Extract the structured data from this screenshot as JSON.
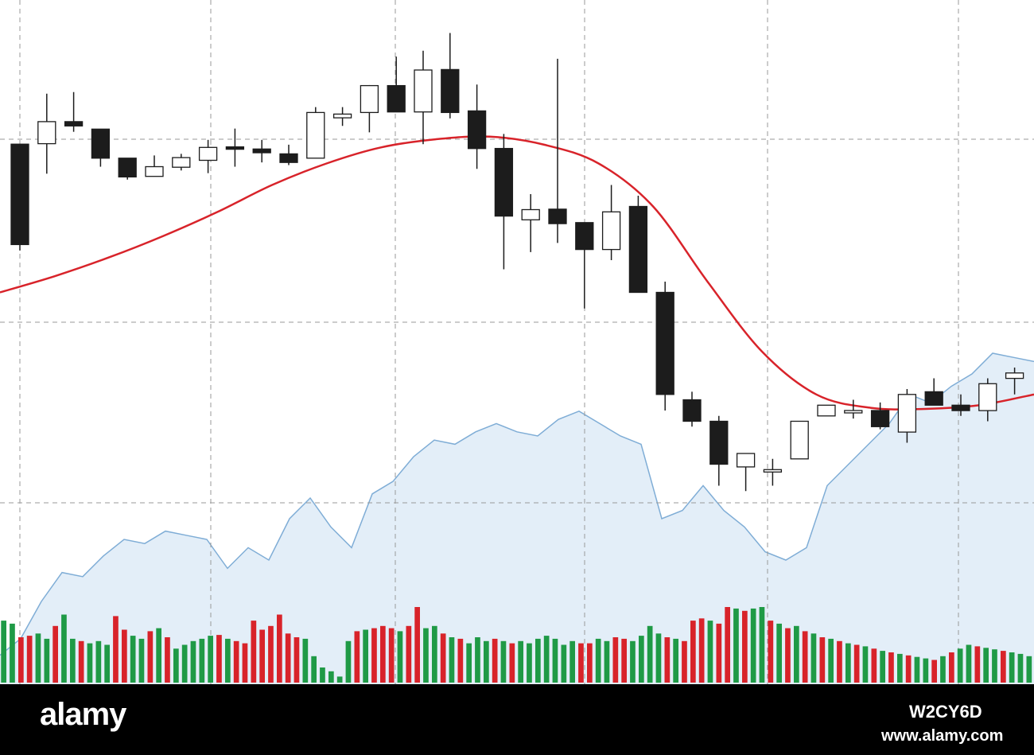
{
  "chart_data": {
    "type": "candlestick",
    "title": "",
    "xlabel": "",
    "ylabel": "",
    "grid": true,
    "ylim": [
      0,
      100
    ],
    "colors": {
      "bull_candle": "#ffffff",
      "bear_candle": "#1c1c1c",
      "candle_outline": "#1c1c1c",
      "moving_average": "#d8232a",
      "area_fill": "#e3eef8",
      "area_line": "#7fadd6",
      "volume_up": "#1f9a46",
      "volume_down": "#d8232a",
      "grid": "#9a9a9a"
    },
    "candles": [
      {
        "o": 77.6,
        "h": 77.6,
        "l": 57.8,
        "c": 58.9
      },
      {
        "o": 77.7,
        "h": 87.0,
        "l": 72.1,
        "c": 81.8
      },
      {
        "o": 81.8,
        "h": 87.3,
        "l": 79.9,
        "c": 81.0
      },
      {
        "o": 80.4,
        "h": 80.4,
        "l": 73.4,
        "c": 75.0
      },
      {
        "o": 75.0,
        "h": 75.0,
        "l": 71.0,
        "c": 71.5
      },
      {
        "o": 71.6,
        "h": 75.5,
        "l": 71.6,
        "c": 73.4
      },
      {
        "o": 73.3,
        "h": 75.8,
        "l": 72.7,
        "c": 75.1
      },
      {
        "o": 74.6,
        "h": 78.4,
        "l": 72.2,
        "c": 77.0
      },
      {
        "o": 77.1,
        "h": 80.5,
        "l": 73.4,
        "c": 77.0
      },
      {
        "o": 76.7,
        "h": 78.4,
        "l": 74.2,
        "c": 76.0
      },
      {
        "o": 75.8,
        "h": 77.5,
        "l": 73.7,
        "c": 74.2
      },
      {
        "o": 75.0,
        "h": 84.5,
        "l": 75.0,
        "c": 83.5
      },
      {
        "o": 82.5,
        "h": 84.5,
        "l": 81.0,
        "c": 83.2
      },
      {
        "o": 83.5,
        "h": 88.6,
        "l": 79.8,
        "c": 88.5
      },
      {
        "o": 88.5,
        "h": 93.9,
        "l": 84.6,
        "c": 83.6
      },
      {
        "o": 83.6,
        "h": 95.0,
        "l": 77.6,
        "c": 91.4
      },
      {
        "o": 91.5,
        "h": 98.3,
        "l": 82.4,
        "c": 83.5
      },
      {
        "o": 83.8,
        "h": 88.7,
        "l": 73.0,
        "c": 76.8
      },
      {
        "o": 76.8,
        "h": 79.5,
        "l": 54.3,
        "c": 64.2
      },
      {
        "o": 63.5,
        "h": 68.3,
        "l": 57.5,
        "c": 65.4
      },
      {
        "o": 65.5,
        "h": 93.5,
        "l": 59.2,
        "c": 62.8
      },
      {
        "o": 63.0,
        "h": 63.0,
        "l": 47.0,
        "c": 58.0
      },
      {
        "o": 58.0,
        "h": 70.0,
        "l": 56.0,
        "c": 65.0
      },
      {
        "o": 66.0,
        "h": 68.0,
        "l": 50.0,
        "c": 50.0
      },
      {
        "o": 50.0,
        "h": 52.0,
        "l": 28.0,
        "c": 31.0
      },
      {
        "o": 30.0,
        "h": 31.5,
        "l": 25.0,
        "c": 26.0
      },
      {
        "o": 26.0,
        "h": 27.0,
        "l": 14.0,
        "c": 18.0
      },
      {
        "o": 17.5,
        "h": 20.0,
        "l": 13.0,
        "c": 20.0
      },
      {
        "o": 17.0,
        "h": 19.0,
        "l": 14.0,
        "c": 17.0
      },
      {
        "o": 19.0,
        "h": 26.0,
        "l": 19.0,
        "c": 26.0
      },
      {
        "o": 27.0,
        "h": 28.0,
        "l": 27.0,
        "c": 29.0
      },
      {
        "o": 28.0,
        "h": 30.0,
        "l": 26.5,
        "c": 28.0
      },
      {
        "o": 28.0,
        "h": 29.5,
        "l": 24.5,
        "c": 25.0
      },
      {
        "o": 24.0,
        "h": 32.0,
        "l": 22.0,
        "c": 31.0
      },
      {
        "o": 31.5,
        "h": 34.0,
        "l": 29.0,
        "c": 29.0
      },
      {
        "o": 29.0,
        "h": 31.0,
        "l": 27.0,
        "c": 28.0
      },
      {
        "o": 28.0,
        "h": 34.0,
        "l": 26.0,
        "c": 33.0
      },
      {
        "o": 34.0,
        "h": 36.0,
        "l": 31.0,
        "c": 35.0
      }
    ],
    "moving_average": [
      50,
      53,
      56.5,
      60.5,
      65,
      70,
      74,
      77,
      78.5,
      79,
      77.5,
      74,
      66,
      52,
      39,
      31,
      28.5,
      28.3,
      29,
      31
    ],
    "area_series": [
      7,
      11,
      20,
      27,
      26,
      31,
      35,
      34,
      37,
      36,
      35,
      28,
      33,
      30,
      40,
      45,
      38,
      33,
      46,
      49,
      55,
      59,
      58,
      61,
      63,
      61,
      60,
      64,
      66,
      63,
      60,
      58,
      40,
      42,
      48,
      42,
      38,
      32,
      30,
      33,
      48,
      53,
      58,
      63,
      70,
      68,
      72,
      75,
      80,
      79,
      78
    ],
    "volume": [
      {
        "v": 82,
        "up": true
      },
      {
        "v": 78,
        "up": true
      },
      {
        "v": 60,
        "up": false
      },
      {
        "v": 62,
        "up": false
      },
      {
        "v": 65,
        "up": true
      },
      {
        "v": 58,
        "up": true
      },
      {
        "v": 75,
        "up": false
      },
      {
        "v": 90,
        "up": true
      },
      {
        "v": 58,
        "up": true
      },
      {
        "v": 55,
        "up": false
      },
      {
        "v": 52,
        "up": true
      },
      {
        "v": 55,
        "up": true
      },
      {
        "v": 50,
        "up": true
      },
      {
        "v": 88,
        "up": false
      },
      {
        "v": 70,
        "up": false
      },
      {
        "v": 62,
        "up": true
      },
      {
        "v": 58,
        "up": true
      },
      {
        "v": 68,
        "up": false
      },
      {
        "v": 72,
        "up": true
      },
      {
        "v": 60,
        "up": false
      },
      {
        "v": 45,
        "up": true
      },
      {
        "v": 50,
        "up": true
      },
      {
        "v": 55,
        "up": true
      },
      {
        "v": 58,
        "up": true
      },
      {
        "v": 62,
        "up": true
      },
      {
        "v": 63,
        "up": false
      },
      {
        "v": 58,
        "up": true
      },
      {
        "v": 55,
        "up": false
      },
      {
        "v": 52,
        "up": false
      },
      {
        "v": 82,
        "up": false
      },
      {
        "v": 70,
        "up": false
      },
      {
        "v": 75,
        "up": false
      },
      {
        "v": 90,
        "up": false
      },
      {
        "v": 65,
        "up": false
      },
      {
        "v": 60,
        "up": false
      },
      {
        "v": 58,
        "up": true
      },
      {
        "v": 35,
        "up": true
      },
      {
        "v": 20,
        "up": true
      },
      {
        "v": 15,
        "up": true
      },
      {
        "v": 8,
        "up": true
      },
      {
        "v": 55,
        "up": true
      },
      {
        "v": 68,
        "up": false
      },
      {
        "v": 70,
        "up": true
      },
      {
        "v": 72,
        "up": false
      },
      {
        "v": 75,
        "up": false
      },
      {
        "v": 72,
        "up": false
      },
      {
        "v": 68,
        "up": true
      },
      {
        "v": 75,
        "up": false
      },
      {
        "v": 100,
        "up": false
      },
      {
        "v": 72,
        "up": true
      },
      {
        "v": 75,
        "up": true
      },
      {
        "v": 65,
        "up": false
      },
      {
        "v": 60,
        "up": true
      },
      {
        "v": 58,
        "up": false
      },
      {
        "v": 52,
        "up": true
      },
      {
        "v": 60,
        "up": true
      },
      {
        "v": 55,
        "up": true
      },
      {
        "v": 58,
        "up": false
      },
      {
        "v": 55,
        "up": true
      },
      {
        "v": 52,
        "up": false
      },
      {
        "v": 55,
        "up": true
      },
      {
        "v": 52,
        "up": true
      },
      {
        "v": 58,
        "up": true
      },
      {
        "v": 62,
        "up": true
      },
      {
        "v": 58,
        "up": true
      },
      {
        "v": 50,
        "up": true
      },
      {
        "v": 55,
        "up": true
      },
      {
        "v": 52,
        "up": false
      },
      {
        "v": 52,
        "up": false
      },
      {
        "v": 58,
        "up": true
      },
      {
        "v": 55,
        "up": true
      },
      {
        "v": 60,
        "up": false
      },
      {
        "v": 58,
        "up": false
      },
      {
        "v": 55,
        "up": true
      },
      {
        "v": 62,
        "up": true
      },
      {
        "v": 75,
        "up": true
      },
      {
        "v": 65,
        "up": true
      },
      {
        "v": 60,
        "up": false
      },
      {
        "v": 58,
        "up": true
      },
      {
        "v": 55,
        "up": false
      },
      {
        "v": 82,
        "up": false
      },
      {
        "v": 85,
        "up": false
      },
      {
        "v": 82,
        "up": true
      },
      {
        "v": 78,
        "up": false
      },
      {
        "v": 100,
        "up": false
      },
      {
        "v": 98,
        "up": true
      },
      {
        "v": 95,
        "up": false
      },
      {
        "v": 98,
        "up": true
      },
      {
        "v": 100,
        "up": true
      },
      {
        "v": 82,
        "up": false
      },
      {
        "v": 78,
        "up": true
      },
      {
        "v": 72,
        "up": false
      },
      {
        "v": 75,
        "up": true
      },
      {
        "v": 68,
        "up": false
      },
      {
        "v": 65,
        "up": true
      },
      {
        "v": 60,
        "up": false
      },
      {
        "v": 58,
        "up": true
      },
      {
        "v": 55,
        "up": false
      },
      {
        "v": 52,
        "up": true
      },
      {
        "v": 50,
        "up": false
      },
      {
        "v": 48,
        "up": true
      },
      {
        "v": 45,
        "up": false
      },
      {
        "v": 42,
        "up": true
      },
      {
        "v": 40,
        "up": false
      },
      {
        "v": 38,
        "up": true
      },
      {
        "v": 36,
        "up": false
      },
      {
        "v": 34,
        "up": true
      },
      {
        "v": 32,
        "up": true
      },
      {
        "v": 30,
        "up": false
      },
      {
        "v": 35,
        "up": true
      },
      {
        "v": 40,
        "up": false
      },
      {
        "v": 45,
        "up": true
      },
      {
        "v": 50,
        "up": true
      },
      {
        "v": 48,
        "up": false
      },
      {
        "v": 46,
        "up": true
      },
      {
        "v": 44,
        "up": true
      },
      {
        "v": 42,
        "up": false
      },
      {
        "v": 40,
        "up": true
      },
      {
        "v": 38,
        "up": true
      },
      {
        "v": 35,
        "up": true
      }
    ]
  },
  "watermark": {
    "brand": "alamy",
    "image_id": "W2CY6D",
    "site": "www.alamy.com"
  }
}
